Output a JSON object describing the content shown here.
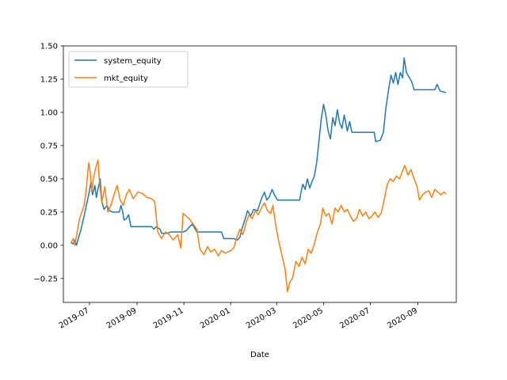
{
  "chart_data": {
    "type": "line",
    "title": "",
    "xlabel": "Date",
    "ylabel": "",
    "ylim": [
      -0.43,
      1.5
    ],
    "xlim": [
      "2019-05-28",
      "2020-10-21"
    ],
    "grid": false,
    "legend_placement": "top-left",
    "x_ticks": [
      "2019-07",
      "2019-09",
      "2019-11",
      "2020-01",
      "2020-03",
      "2020-05",
      "2020-07",
      "2020-09"
    ],
    "y_ticks": [
      "−0.25",
      "0.00",
      "0.25",
      "0.50",
      "0.75",
      "1.00",
      "1.25",
      "1.50"
    ],
    "series": [
      {
        "name": "system_equity",
        "color": "#1f77b4",
        "points": [
          [
            "2019-06-07",
            0.02
          ],
          [
            "2019-06-10",
            0.01
          ],
          [
            "2019-06-12",
            0.04
          ],
          [
            "2019-06-14",
            0.0
          ],
          [
            "2019-06-17",
            0.06
          ],
          [
            "2019-06-20",
            0.12
          ],
          [
            "2019-06-24",
            0.22
          ],
          [
            "2019-06-27",
            0.3
          ],
          [
            "2019-07-01",
            0.41
          ],
          [
            "2019-07-03",
            0.48
          ],
          [
            "2019-07-05",
            0.38
          ],
          [
            "2019-07-08",
            0.45
          ],
          [
            "2019-07-10",
            0.36
          ],
          [
            "2019-07-12",
            0.42
          ],
          [
            "2019-07-15",
            0.5
          ],
          [
            "2019-07-17",
            0.33
          ],
          [
            "2019-07-20",
            0.27
          ],
          [
            "2019-07-24",
            0.3
          ],
          [
            "2019-07-27",
            0.26
          ],
          [
            "2019-07-31",
            0.25
          ],
          [
            "2019-08-05",
            0.25
          ],
          [
            "2019-08-09",
            0.25
          ],
          [
            "2019-08-11",
            0.3
          ],
          [
            "2019-08-13",
            0.26
          ],
          [
            "2019-08-15",
            0.19
          ],
          [
            "2019-08-18",
            0.2
          ],
          [
            "2019-08-21",
            0.23
          ],
          [
            "2019-08-24",
            0.14
          ],
          [
            "2019-09-05",
            0.14
          ],
          [
            "2019-09-20",
            0.14
          ],
          [
            "2019-09-23",
            0.12
          ],
          [
            "2019-09-26",
            0.14
          ],
          [
            "2019-10-01",
            0.12
          ],
          [
            "2019-10-03",
            0.09
          ],
          [
            "2019-10-10",
            0.09
          ],
          [
            "2019-10-15",
            0.1
          ],
          [
            "2019-10-31",
            0.1
          ],
          [
            "2019-11-04",
            0.11
          ],
          [
            "2019-11-07",
            0.13
          ],
          [
            "2019-11-12",
            0.16
          ],
          [
            "2019-11-18",
            0.1
          ],
          [
            "2019-12-20",
            0.1
          ],
          [
            "2019-12-23",
            0.05
          ],
          [
            "2020-01-05",
            0.05
          ],
          [
            "2020-01-10",
            0.04
          ],
          [
            "2020-01-13",
            0.06
          ],
          [
            "2020-01-16",
            0.13
          ],
          [
            "2020-01-20",
            0.2
          ],
          [
            "2020-01-23",
            0.26
          ],
          [
            "2020-01-27",
            0.22
          ],
          [
            "2020-01-31",
            0.27
          ],
          [
            "2020-02-05",
            0.26
          ],
          [
            "2020-02-10",
            0.35
          ],
          [
            "2020-02-14",
            0.4
          ],
          [
            "2020-02-17",
            0.34
          ],
          [
            "2020-02-20",
            0.36
          ],
          [
            "2020-02-24",
            0.42
          ],
          [
            "2020-02-27",
            0.38
          ],
          [
            "2020-03-02",
            0.34
          ],
          [
            "2020-03-31",
            0.34
          ],
          [
            "2020-04-01",
            0.38
          ],
          [
            "2020-04-04",
            0.46
          ],
          [
            "2020-04-07",
            0.42
          ],
          [
            "2020-04-10",
            0.5
          ],
          [
            "2020-04-13",
            0.43
          ],
          [
            "2020-04-16",
            0.48
          ],
          [
            "2020-04-19",
            0.52
          ],
          [
            "2020-04-22",
            0.62
          ],
          [
            "2020-04-25",
            0.78
          ],
          [
            "2020-04-28",
            0.95
          ],
          [
            "2020-05-01",
            1.06
          ],
          [
            "2020-05-04",
            0.98
          ],
          [
            "2020-05-07",
            0.86
          ],
          [
            "2020-05-10",
            0.8
          ],
          [
            "2020-05-13",
            0.96
          ],
          [
            "2020-05-16",
            0.9
          ],
          [
            "2020-05-19",
            1.02
          ],
          [
            "2020-05-22",
            0.92
          ],
          [
            "2020-05-25",
            0.88
          ],
          [
            "2020-05-28",
            0.98
          ],
          [
            "2020-06-01",
            0.86
          ],
          [
            "2020-06-04",
            0.93
          ],
          [
            "2020-06-07",
            0.85
          ],
          [
            "2020-06-10",
            0.85
          ],
          [
            "2020-07-06",
            0.85
          ],
          [
            "2020-07-08",
            0.78
          ],
          [
            "2020-07-14",
            0.79
          ],
          [
            "2020-07-18",
            0.85
          ],
          [
            "2020-07-21",
            1.02
          ],
          [
            "2020-07-25",
            1.18
          ],
          [
            "2020-07-28",
            1.28
          ],
          [
            "2020-07-31",
            1.22
          ],
          [
            "2020-08-03",
            1.3
          ],
          [
            "2020-08-06",
            1.21
          ],
          [
            "2020-08-09",
            1.3
          ],
          [
            "2020-08-12",
            1.26
          ],
          [
            "2020-08-14",
            1.41
          ],
          [
            "2020-08-17",
            1.3
          ],
          [
            "2020-08-20",
            1.27
          ],
          [
            "2020-08-24",
            1.23
          ],
          [
            "2020-08-27",
            1.17
          ],
          [
            "2020-09-23",
            1.17
          ],
          [
            "2020-09-26",
            1.21
          ],
          [
            "2020-09-30",
            1.16
          ],
          [
            "2020-10-07",
            1.15
          ]
        ]
      },
      {
        "name": "mkt_equity",
        "color": "#ff7f0e",
        "points": [
          [
            "2019-06-07",
            0.02
          ],
          [
            "2019-06-10",
            0.05
          ],
          [
            "2019-06-12",
            0.0
          ],
          [
            "2019-06-15",
            0.1
          ],
          [
            "2019-06-18",
            0.2
          ],
          [
            "2019-06-21",
            0.25
          ],
          [
            "2019-06-24",
            0.3
          ],
          [
            "2019-06-27",
            0.43
          ],
          [
            "2019-06-30",
            0.62
          ],
          [
            "2019-07-02",
            0.55
          ],
          [
            "2019-07-04",
            0.4
          ],
          [
            "2019-07-06",
            0.5
          ],
          [
            "2019-07-09",
            0.58
          ],
          [
            "2019-07-12",
            0.64
          ],
          [
            "2019-07-14",
            0.48
          ],
          [
            "2019-07-17",
            0.32
          ],
          [
            "2019-07-21",
            0.44
          ],
          [
            "2019-07-25",
            0.25
          ],
          [
            "2019-07-29",
            0.3
          ],
          [
            "2019-08-02",
            0.38
          ],
          [
            "2019-08-06",
            0.45
          ],
          [
            "2019-08-10",
            0.34
          ],
          [
            "2019-08-14",
            0.3
          ],
          [
            "2019-08-18",
            0.38
          ],
          [
            "2019-08-22",
            0.42
          ],
          [
            "2019-08-27",
            0.35
          ],
          [
            "2019-09-02",
            0.4
          ],
          [
            "2019-09-08",
            0.39
          ],
          [
            "2019-09-14",
            0.36
          ],
          [
            "2019-09-20",
            0.35
          ],
          [
            "2019-09-24",
            0.33
          ],
          [
            "2019-09-28",
            0.1
          ],
          [
            "2019-10-03",
            0.05
          ],
          [
            "2019-10-08",
            0.1
          ],
          [
            "2019-10-13",
            0.08
          ],
          [
            "2019-10-18",
            0.04
          ],
          [
            "2019-10-24",
            0.08
          ],
          [
            "2019-10-28",
            -0.02
          ],
          [
            "2019-10-31",
            0.24
          ],
          [
            "2019-11-04",
            0.22
          ],
          [
            "2019-11-08",
            0.2
          ],
          [
            "2019-11-13",
            0.16
          ],
          [
            "2019-11-18",
            0.12
          ],
          [
            "2019-11-22",
            -0.03
          ],
          [
            "2019-11-27",
            -0.07
          ],
          [
            "2019-12-02",
            -0.01
          ],
          [
            "2019-12-06",
            -0.05
          ],
          [
            "2019-12-11",
            -0.03
          ],
          [
            "2019-12-16",
            -0.08
          ],
          [
            "2019-12-20",
            -0.04
          ],
          [
            "2019-12-25",
            -0.06
          ],
          [
            "2020-01-01",
            -0.04
          ],
          [
            "2020-01-05",
            -0.02
          ],
          [
            "2020-01-09",
            0.06
          ],
          [
            "2020-01-13",
            0.12
          ],
          [
            "2020-01-17",
            0.08
          ],
          [
            "2020-01-21",
            0.17
          ],
          [
            "2020-01-25",
            0.23
          ],
          [
            "2020-01-29",
            0.2
          ],
          [
            "2020-02-02",
            0.26
          ],
          [
            "2020-02-06",
            0.23
          ],
          [
            "2020-02-10",
            0.28
          ],
          [
            "2020-02-14",
            0.32
          ],
          [
            "2020-02-18",
            0.26
          ],
          [
            "2020-02-22",
            0.24
          ],
          [
            "2020-02-25",
            0.3
          ],
          [
            "2020-02-29",
            0.14
          ],
          [
            "2020-03-04",
            0.02
          ],
          [
            "2020-03-08",
            -0.08
          ],
          [
            "2020-03-12",
            -0.18
          ],
          [
            "2020-03-15",
            -0.35
          ],
          [
            "2020-03-18",
            -0.28
          ],
          [
            "2020-03-22",
            -0.24
          ],
          [
            "2020-03-26",
            -0.12
          ],
          [
            "2020-03-30",
            -0.16
          ],
          [
            "2020-04-03",
            -0.09
          ],
          [
            "2020-04-07",
            -0.14
          ],
          [
            "2020-04-11",
            -0.03
          ],
          [
            "2020-04-15",
            -0.06
          ],
          [
            "2020-04-19",
            0.01
          ],
          [
            "2020-04-23",
            0.1
          ],
          [
            "2020-04-27",
            0.16
          ],
          [
            "2020-04-30",
            0.28
          ],
          [
            "2020-05-04",
            0.22
          ],
          [
            "2020-05-08",
            0.24
          ],
          [
            "2020-05-12",
            0.16
          ],
          [
            "2020-05-16",
            0.28
          ],
          [
            "2020-05-20",
            0.25
          ],
          [
            "2020-05-24",
            0.3
          ],
          [
            "2020-05-28",
            0.25
          ],
          [
            "2020-06-01",
            0.27
          ],
          [
            "2020-06-05",
            0.22
          ],
          [
            "2020-06-09",
            0.18
          ],
          [
            "2020-06-13",
            0.2
          ],
          [
            "2020-06-17",
            0.27
          ],
          [
            "2020-06-21",
            0.22
          ],
          [
            "2020-06-25",
            0.25
          ],
          [
            "2020-06-29",
            0.2
          ],
          [
            "2020-07-03",
            0.22
          ],
          [
            "2020-07-07",
            0.25
          ],
          [
            "2020-07-11",
            0.21
          ],
          [
            "2020-07-15",
            0.24
          ],
          [
            "2020-07-19",
            0.34
          ],
          [
            "2020-07-23",
            0.46
          ],
          [
            "2020-07-27",
            0.5
          ],
          [
            "2020-07-31",
            0.48
          ],
          [
            "2020-08-04",
            0.52
          ],
          [
            "2020-08-08",
            0.5
          ],
          [
            "2020-08-12",
            0.56
          ],
          [
            "2020-08-15",
            0.6
          ],
          [
            "2020-08-19",
            0.53
          ],
          [
            "2020-08-23",
            0.57
          ],
          [
            "2020-08-27",
            0.5
          ],
          [
            "2020-08-31",
            0.44
          ],
          [
            "2020-09-03",
            0.34
          ],
          [
            "2020-09-07",
            0.38
          ],
          [
            "2020-09-11",
            0.4
          ],
          [
            "2020-09-15",
            0.41
          ],
          [
            "2020-09-19",
            0.36
          ],
          [
            "2020-09-23",
            0.42
          ],
          [
            "2020-09-27",
            0.4
          ],
          [
            "2020-10-01",
            0.38
          ],
          [
            "2020-10-05",
            0.4
          ],
          [
            "2020-10-07",
            0.39
          ]
        ]
      }
    ]
  }
}
